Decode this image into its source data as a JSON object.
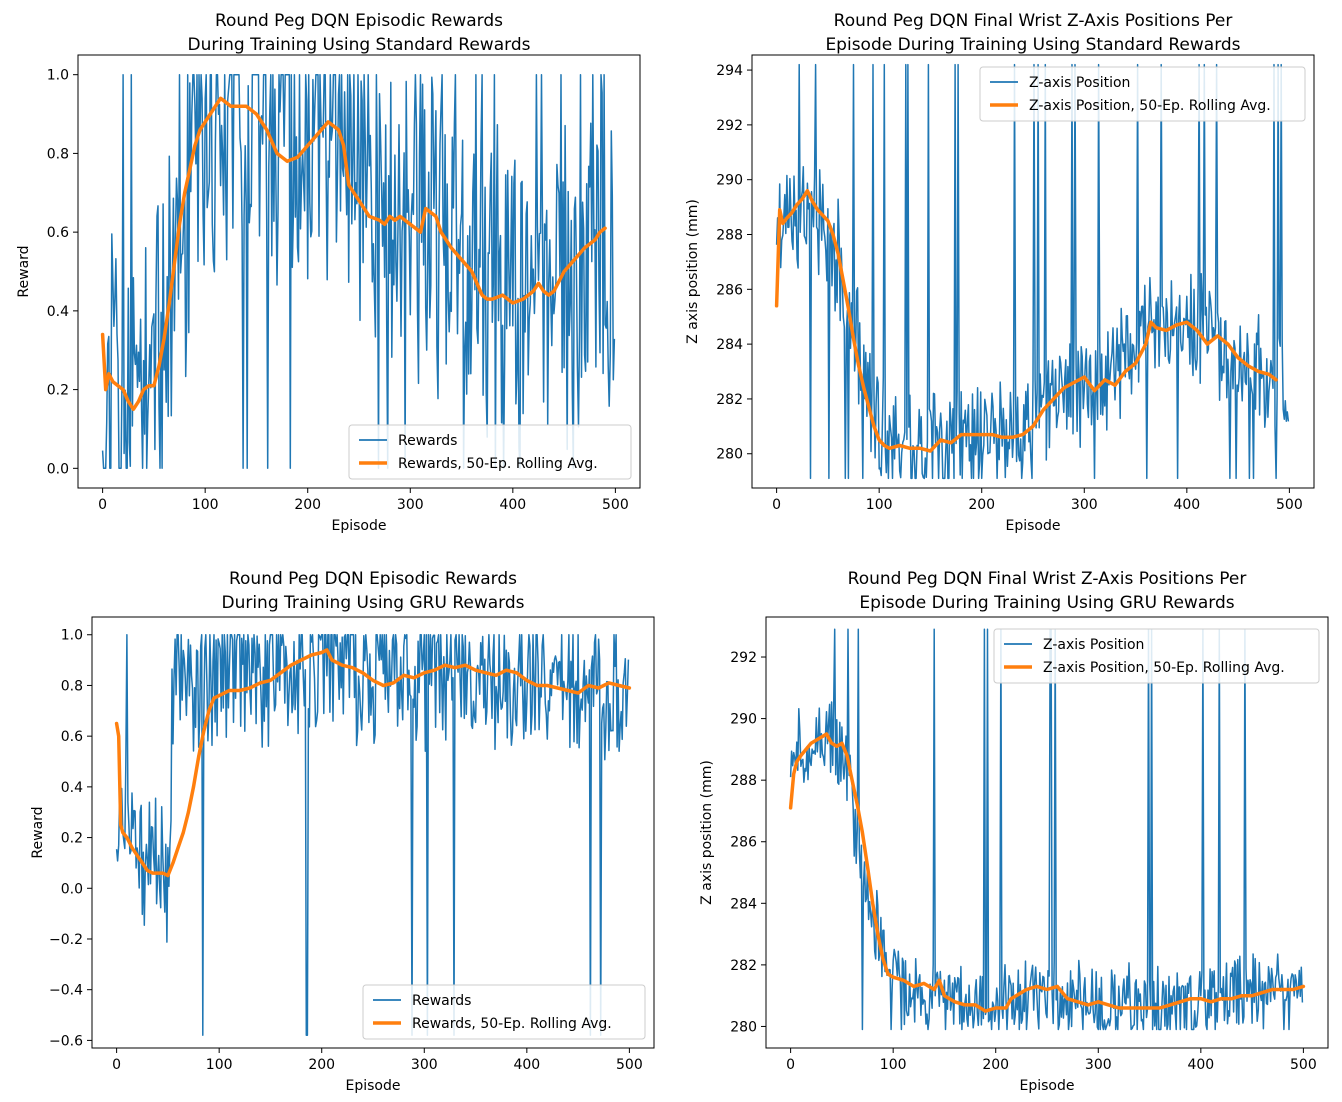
{
  "colors": {
    "raw_series": "#1f77b4",
    "rolling_series": "#ff7f0e",
    "axes": "#000000",
    "background": "#ffffff",
    "legend_border": "#cccccc"
  },
  "chart_data": [
    {
      "type": "line",
      "title": [
        "Round Peg DQN Episodic Rewards",
        "During Training Using Standard Rewards"
      ],
      "xlabel": "Episode",
      "ylabel": "Reward",
      "xlim": [
        -24,
        524
      ],
      "ylim": [
        -0.05,
        1.05
      ],
      "xticks": [
        0,
        100,
        200,
        300,
        400,
        500
      ],
      "yticks": [
        0.0,
        0.2,
        0.4,
        0.6,
        0.8,
        1.0
      ],
      "ytick_labels": [
        "0.0",
        "0.2",
        "0.4",
        "0.6",
        "0.8",
        "1.0"
      ],
      "grid": false,
      "legend_location": "lower-right",
      "raw_series": {
        "name": "Rewards",
        "episodes": 500,
        "keypoints": [
          [
            0,
            0.22
          ],
          [
            30,
            0.18
          ],
          [
            55,
            0.22
          ],
          [
            80,
            0.6
          ],
          [
            110,
            0.92
          ],
          [
            150,
            0.92
          ],
          [
            190,
            0.8
          ],
          [
            230,
            0.88
          ],
          [
            270,
            0.66
          ],
          [
            320,
            0.62
          ],
          [
            360,
            0.5
          ],
          [
            400,
            0.44
          ],
          [
            430,
            0.46
          ],
          [
            460,
            0.54
          ],
          [
            499,
            0.6
          ]
        ],
        "noise": 0.5,
        "seed": 11,
        "clip": [
          0,
          1
        ]
      },
      "rolling_series": {
        "name": "Rewards, 50-Ep. Rolling Avg.",
        "x": [
          0,
          3,
          6,
          10,
          15,
          20,
          25,
          30,
          35,
          40,
          45,
          50,
          55,
          60,
          65,
          70,
          75,
          80,
          85,
          90,
          95,
          100,
          105,
          110,
          115,
          120,
          125,
          130,
          140,
          150,
          160,
          170,
          180,
          190,
          200,
          210,
          220,
          225,
          230,
          235,
          240,
          250,
          260,
          270,
          275,
          280,
          285,
          290,
          300,
          310,
          315,
          320,
          325,
          330,
          335,
          340,
          350,
          360,
          370,
          375,
          380,
          390,
          400,
          410,
          420,
          425,
          430,
          435,
          440,
          450,
          460,
          470,
          480,
          485,
          490
        ],
        "y": [
          0.34,
          0.2,
          0.24,
          0.22,
          0.21,
          0.2,
          0.17,
          0.15,
          0.17,
          0.2,
          0.21,
          0.21,
          0.26,
          0.33,
          0.42,
          0.52,
          0.62,
          0.7,
          0.76,
          0.82,
          0.86,
          0.88,
          0.9,
          0.92,
          0.94,
          0.93,
          0.92,
          0.92,
          0.92,
          0.9,
          0.86,
          0.8,
          0.78,
          0.79,
          0.82,
          0.85,
          0.88,
          0.87,
          0.86,
          0.82,
          0.72,
          0.68,
          0.64,
          0.63,
          0.62,
          0.64,
          0.63,
          0.64,
          0.62,
          0.6,
          0.66,
          0.65,
          0.64,
          0.6,
          0.58,
          0.56,
          0.53,
          0.5,
          0.44,
          0.43,
          0.43,
          0.44,
          0.42,
          0.43,
          0.45,
          0.47,
          0.45,
          0.44,
          0.45,
          0.5,
          0.53,
          0.56,
          0.58,
          0.6,
          0.61
        ]
      }
    },
    {
      "type": "line",
      "title": [
        "Round Peg DQN Final Wrist Z-Axis Positions Per",
        "Episode During Training Using Standard Rewards"
      ],
      "xlabel": "Episode",
      "ylabel": "Z axis position (mm)",
      "xlim": [
        -24,
        524
      ],
      "ylim": [
        278.75,
        294.55
      ],
      "xticks": [
        0,
        100,
        200,
        300,
        400,
        500
      ],
      "yticks": [
        280,
        282,
        284,
        286,
        288,
        290,
        292,
        294
      ],
      "ytick_labels": [
        "280",
        "282",
        "284",
        "286",
        "288",
        "290",
        "292",
        "294"
      ],
      "grid": false,
      "legend_location": "upper-right",
      "raw_series": {
        "name": "Z-axis Position",
        "episodes": 500,
        "keypoints": [
          [
            0,
            288.5
          ],
          [
            20,
            289
          ],
          [
            40,
            288.5
          ],
          [
            60,
            287
          ],
          [
            80,
            284
          ],
          [
            100,
            281
          ],
          [
            120,
            280.2
          ],
          [
            160,
            280.2
          ],
          [
            200,
            280.6
          ],
          [
            240,
            280.8
          ],
          [
            280,
            282.3
          ],
          [
            320,
            282.8
          ],
          [
            360,
            284.5
          ],
          [
            400,
            284.7
          ],
          [
            440,
            283.8
          ],
          [
            470,
            283
          ],
          [
            499,
            282.6
          ]
        ],
        "noise": 2.4,
        "seed": 23,
        "clip": [
          279.1,
          294.2
        ]
      },
      "rolling_series": {
        "name": "Z-axis Position, 50-Ep. Rolling Avg.",
        "x": [
          0,
          3,
          6,
          10,
          15,
          20,
          25,
          30,
          35,
          40,
          45,
          50,
          55,
          60,
          65,
          70,
          75,
          80,
          85,
          90,
          95,
          100,
          105,
          110,
          120,
          130,
          140,
          150,
          160,
          170,
          180,
          190,
          200,
          210,
          220,
          230,
          240,
          250,
          260,
          270,
          280,
          290,
          300,
          310,
          320,
          330,
          340,
          350,
          360,
          365,
          370,
          380,
          390,
          400,
          410,
          420,
          430,
          440,
          450,
          460,
          470,
          480,
          487
        ],
        "y": [
          285.4,
          288.9,
          288.4,
          288.6,
          288.8,
          289.1,
          289.3,
          289.6,
          289.2,
          288.9,
          288.7,
          288.5,
          288.0,
          287.3,
          286.3,
          285.3,
          284.2,
          283.2,
          282.4,
          281.7,
          281.0,
          280.5,
          280.3,
          280.2,
          280.3,
          280.2,
          280.2,
          280.1,
          280.5,
          280.4,
          280.7,
          280.7,
          280.7,
          280.7,
          280.6,
          280.6,
          280.7,
          281.0,
          281.6,
          282.0,
          282.4,
          282.6,
          282.8,
          282.3,
          282.7,
          282.5,
          283.0,
          283.3,
          284.0,
          284.8,
          284.6,
          284.5,
          284.7,
          284.8,
          284.5,
          284.0,
          284.3,
          284.0,
          283.5,
          283.2,
          283.0,
          282.9,
          282.7
        ]
      }
    },
    {
      "type": "line",
      "title": [
        "Round Peg DQN Episodic Rewards",
        "During Training Using GRU Rewards"
      ],
      "xlabel": "Episode",
      "ylabel": "Reward",
      "xlim": [
        -24,
        524
      ],
      "ylim": [
        -0.63,
        1.07
      ],
      "xticks": [
        0,
        100,
        200,
        300,
        400,
        500
      ],
      "yticks": [
        -0.6,
        -0.4,
        -0.2,
        0.0,
        0.2,
        0.4,
        0.6,
        0.8,
        1.0
      ],
      "ytick_labels": [
        "−0.6",
        "−0.4",
        "−0.2",
        "0.0",
        "0.2",
        "0.4",
        "0.6",
        "0.8",
        "1.0"
      ],
      "grid": false,
      "legend_location": "lower-right",
      "raw_series": {
        "name": "Rewards",
        "episodes": 500,
        "keypoints": [
          [
            0,
            0.3
          ],
          [
            20,
            0.15
          ],
          [
            40,
            0.05
          ],
          [
            50,
            0.1
          ],
          [
            55,
            0.8
          ],
          [
            80,
            0.82
          ],
          [
            120,
            0.85
          ],
          [
            200,
            0.92
          ],
          [
            240,
            0.84
          ],
          [
            280,
            0.84
          ],
          [
            330,
            0.86
          ],
          [
            380,
            0.84
          ],
          [
            420,
            0.8
          ],
          [
            460,
            0.82
          ],
          [
            499,
            0.8
          ]
        ],
        "noise": 0.35,
        "seed": 37,
        "clip": [
          -0.58,
          1.0
        ]
      },
      "rolling_series": {
        "name": "Rewards, 50-Ep. Rolling Avg.",
        "x": [
          0,
          2,
          4,
          6,
          10,
          15,
          20,
          25,
          30,
          35,
          40,
          45,
          50,
          55,
          60,
          65,
          70,
          75,
          80,
          85,
          90,
          95,
          100,
          110,
          120,
          130,
          140,
          150,
          160,
          170,
          180,
          190,
          200,
          205,
          210,
          220,
          230,
          240,
          250,
          260,
          270,
          280,
          290,
          300,
          310,
          320,
          330,
          340,
          350,
          360,
          370,
          380,
          390,
          400,
          410,
          420,
          430,
          440,
          450,
          460,
          470,
          480,
          490,
          500
        ],
        "y": [
          0.65,
          0.6,
          0.25,
          0.22,
          0.2,
          0.16,
          0.13,
          0.1,
          0.07,
          0.06,
          0.06,
          0.06,
          0.05,
          0.1,
          0.16,
          0.22,
          0.3,
          0.4,
          0.52,
          0.62,
          0.7,
          0.75,
          0.76,
          0.78,
          0.78,
          0.79,
          0.81,
          0.82,
          0.85,
          0.88,
          0.9,
          0.92,
          0.93,
          0.94,
          0.9,
          0.88,
          0.87,
          0.85,
          0.82,
          0.8,
          0.81,
          0.84,
          0.83,
          0.85,
          0.86,
          0.88,
          0.87,
          0.88,
          0.86,
          0.85,
          0.84,
          0.86,
          0.85,
          0.82,
          0.8,
          0.8,
          0.79,
          0.78,
          0.77,
          0.8,
          0.79,
          0.81,
          0.8,
          0.79
        ]
      }
    },
    {
      "type": "line",
      "title": [
        "Round Peg DQN Final Wrist Z-Axis Positions Per",
        "Episode During Training Using GRU Rewards"
      ],
      "xlabel": "Episode",
      "ylabel": "Z axis position (mm)",
      "xlim": [
        -24,
        524
      ],
      "ylim": [
        279.3,
        293.3
      ],
      "xticks": [
        0,
        100,
        200,
        300,
        400,
        500
      ],
      "yticks": [
        280,
        282,
        284,
        286,
        288,
        290,
        292
      ],
      "ytick_labels": [
        "280",
        "282",
        "284",
        "286",
        "288",
        "290",
        "292"
      ],
      "grid": false,
      "legend_location": "upper-right",
      "raw_series": {
        "name": "Z-axis Position",
        "episodes": 500,
        "keypoints": [
          [
            0,
            288.8
          ],
          [
            20,
            289.2
          ],
          [
            40,
            289.5
          ],
          [
            55,
            288.5
          ],
          [
            70,
            285
          ],
          [
            90,
            282.5
          ],
          [
            110,
            281.2
          ],
          [
            150,
            280.8
          ],
          [
            200,
            280.6
          ],
          [
            250,
            280.9
          ],
          [
            300,
            280.7
          ],
          [
            350,
            280.7
          ],
          [
            400,
            280.8
          ],
          [
            450,
            281
          ],
          [
            499,
            281.1
          ]
        ],
        "noise": 1.5,
        "seed": 51,
        "clip": [
          279.9,
          292.9
        ]
      },
      "rolling_series": {
        "name": "Z-axis Position, 50-Ep. Rolling Avg.",
        "x": [
          0,
          3,
          6,
          10,
          15,
          20,
          25,
          30,
          35,
          40,
          45,
          50,
          55,
          60,
          65,
          70,
          75,
          80,
          85,
          90,
          95,
          100,
          110,
          120,
          130,
          140,
          145,
          150,
          160,
          170,
          180,
          190,
          200,
          210,
          215,
          220,
          230,
          240,
          250,
          260,
          270,
          280,
          290,
          300,
          310,
          320,
          330,
          340,
          350,
          360,
          370,
          380,
          390,
          400,
          410,
          420,
          430,
          440,
          450,
          460,
          470,
          480,
          490,
          500
        ],
        "y": [
          287.1,
          288.2,
          288.6,
          288.8,
          289.0,
          289.2,
          289.3,
          289.4,
          289.5,
          289.2,
          289.1,
          289.2,
          288.8,
          288.0,
          287.2,
          286.3,
          285.2,
          284.0,
          283.0,
          282.2,
          281.7,
          281.6,
          281.5,
          281.3,
          281.4,
          281.2,
          281.5,
          281.0,
          280.8,
          280.7,
          280.7,
          280.5,
          280.6,
          280.6,
          280.9,
          281.0,
          281.2,
          281.3,
          281.2,
          281.3,
          280.9,
          280.8,
          280.7,
          280.8,
          280.7,
          280.6,
          280.6,
          280.6,
          280.6,
          280.6,
          280.7,
          280.8,
          280.9,
          280.9,
          280.8,
          280.9,
          280.9,
          281.0,
          281.0,
          281.1,
          281.2,
          281.2,
          281.2,
          281.3
        ]
      }
    }
  ]
}
